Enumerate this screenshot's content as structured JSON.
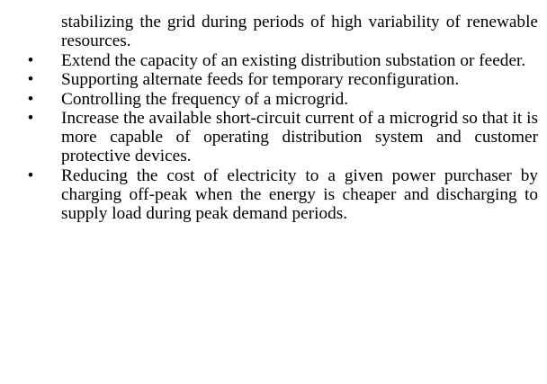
{
  "document": {
    "continuation_text": "stabilizing the grid during periods of high variability of renewable resources.",
    "bullet_symbol": "•",
    "bullets": [
      {
        "text": "Extend the capacity of an existing distribution substation or feeder."
      },
      {
        "text": "Supporting alternate feeds for temporary reconfiguration."
      },
      {
        "text": "Controlling the frequency of a microgrid."
      },
      {
        "text": "Increase the available short-circuit current of a microgrid so that it is more capable of operating distribution system and customer protective devices."
      },
      {
        "text": "Reducing the cost of electricity to a given power purchaser by charging off-peak when the energy is cheaper and discharging to supply load during peak demand periods."
      }
    ]
  }
}
